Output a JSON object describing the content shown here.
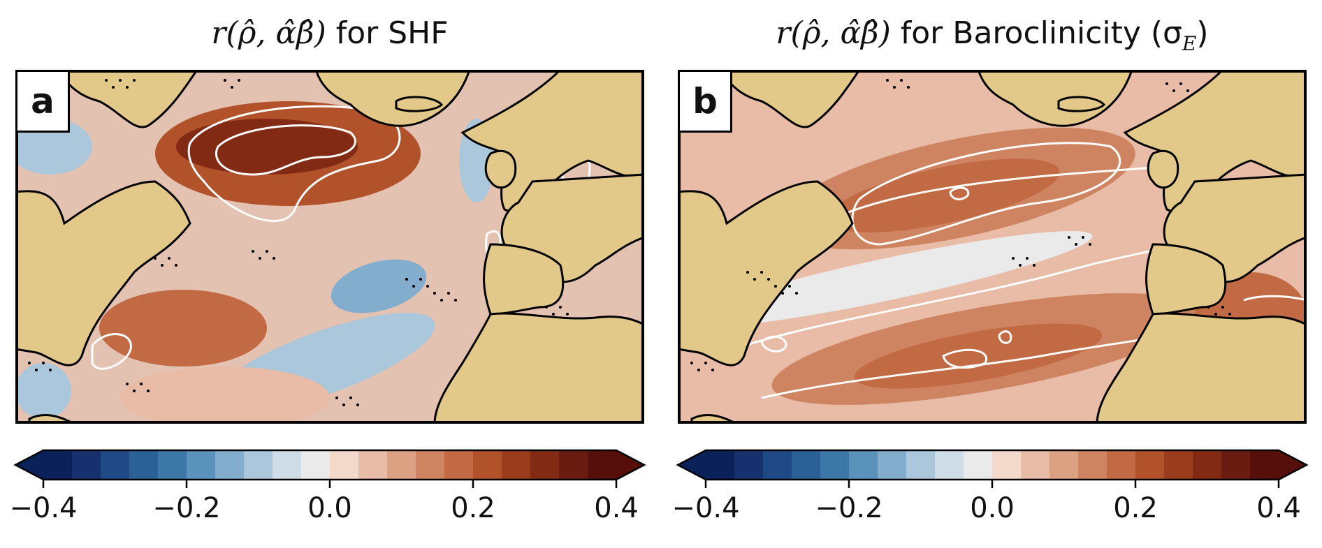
{
  "panels": [
    {
      "id": "a",
      "label": "a",
      "title_symbol": "r(ρ̂, α̂β̂)",
      "title_text": " for SHF"
    },
    {
      "id": "b",
      "label": "b",
      "title_symbol": "r(ρ̂, α̂β̂)",
      "title_text": " for Baroclinicity (σ",
      "title_sub": "E",
      "title_close": ")"
    }
  ],
  "colorbar": {
    "ticks": [
      "−0.4",
      "−0.2",
      "0.0",
      "0.2",
      "0.4"
    ],
    "tick_values": [
      -0.4,
      -0.2,
      0.0,
      0.2,
      0.4
    ],
    "range": [
      -0.4,
      0.4
    ],
    "extend": "both",
    "colors": [
      "#0b2159",
      "#17306e",
      "#1f4a86",
      "#2a6196",
      "#3e78a8",
      "#5a92bb",
      "#83adcd",
      "#aac7dc",
      "#cfdde8",
      "#ebeaea",
      "#f2d9cc",
      "#e8bca6",
      "#dca083",
      "#cf8461",
      "#c26a43",
      "#b1522b",
      "#9a3d1d",
      "#822a14",
      "#6b1c10",
      "#560f0a"
    ]
  },
  "colors": {
    "land": "#e2c98a",
    "coast": "#000000",
    "contour": "#ffffff",
    "stipple": "#000000"
  }
}
